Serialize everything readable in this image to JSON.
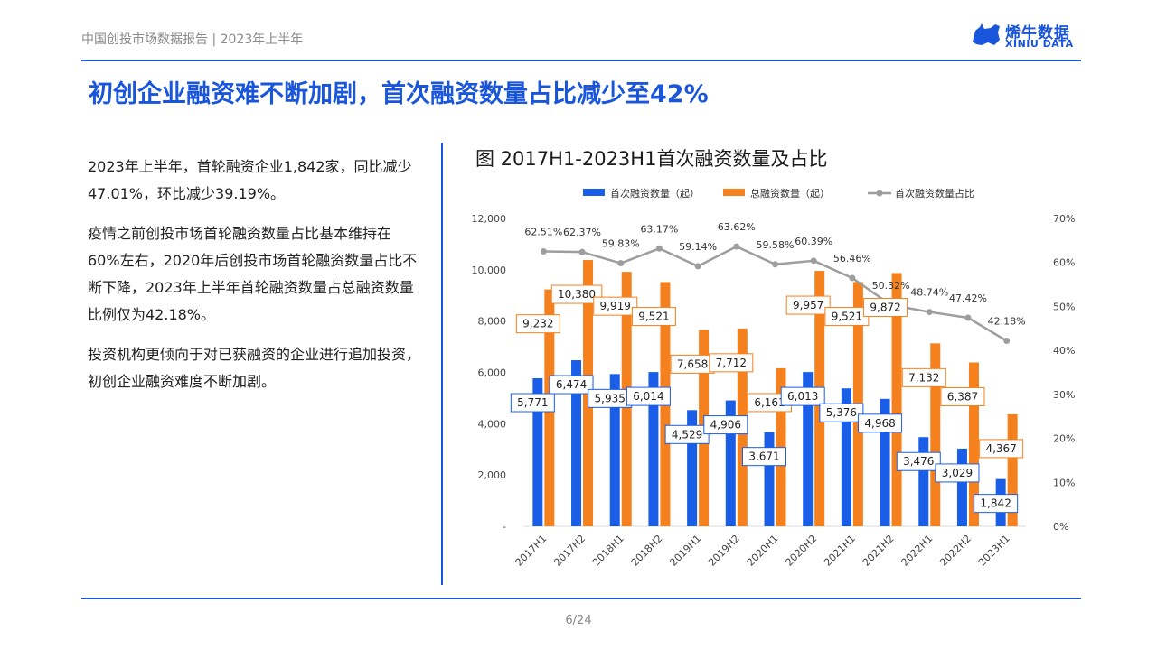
{
  "header": {
    "report_title": "中国创投市场数据报告 | 2023年上半年",
    "logo_cn": "烯牛数据",
    "logo_en": "XINIU DATA"
  },
  "page_title": "初创企业融资难不断加剧，首次融资数量占比减少至42%",
  "body_text": {
    "p1": "2023年上半年，首轮融资企业1,842家，同比减少47.01%，环比减少39.19%。",
    "p2": "疫情之前创投市场首轮融资数量占比基本维持在60%左右，2020年后创投市场首轮融资数量占比不断下降，2023年上半年首轮融资数量占总融资数量比例仅为42.18%。",
    "p3": "投资机构更倾向于对已获融资的企业进行追加投资，初创企业融资难度不断加剧。"
  },
  "chart_title": "图 2017H1-2023H1首次融资数量及占比",
  "chart_data": {
    "type": "bar",
    "categories": [
      "2017H1",
      "2017H2",
      "2018H1",
      "2018H2",
      "2019H1",
      "2019H2",
      "2020H1",
      "2020H2",
      "2021H1",
      "2021H2",
      "2022H1",
      "2022H2",
      "2023H1"
    ],
    "series": [
      {
        "name": "首次融资数量（起）",
        "type": "bar",
        "axis": "left",
        "color": "#1a5ee8",
        "values": [
          5771,
          6474,
          5935,
          6014,
          4529,
          4906,
          3671,
          6013,
          5376,
          4968,
          3476,
          3029,
          1842
        ],
        "labels": [
          "5,771",
          "6,474",
          "5,935",
          "6,014",
          "4,529",
          "4,906",
          "3,671",
          "6,013",
          "5,376",
          "4,968",
          "3,476",
          "3,029",
          "1,842"
        ]
      },
      {
        "name": "总融资数量（起）",
        "type": "bar",
        "axis": "left",
        "color": "#f5801e",
        "values": [
          9232,
          10380,
          9919,
          9521,
          7658,
          7712,
          6161,
          9957,
          9521,
          9872,
          7132,
          6387,
          4367
        ],
        "labels": [
          "9,232",
          "10,380",
          "9,919",
          "9,521",
          "7,658",
          "7,712",
          "6,161",
          "9,957",
          "9,521",
          "9,872",
          "7,132",
          "6,387",
          "4,367"
        ]
      },
      {
        "name": "首次融资数量占比",
        "type": "line",
        "axis": "right",
        "color": "#9e9e9e",
        "values": [
          62.51,
          62.37,
          59.83,
          63.17,
          59.14,
          63.62,
          59.58,
          60.39,
          56.46,
          50.32,
          48.74,
          47.42,
          42.18
        ],
        "labels": [
          "62.51%",
          "62.37%",
          "59.83%",
          "63.17%",
          "59.14%",
          "63.62%",
          "59.58%",
          "60.39%",
          "56.46%",
          "50.32%",
          "48.74%",
          "47.42%",
          "42.18%"
        ]
      }
    ],
    "left_axis": {
      "min": 0,
      "max": 12000,
      "ticks": [
        "-",
        "2,000",
        "4,000",
        "6,000",
        "8,000",
        "10,000",
        "12,000"
      ]
    },
    "right_axis": {
      "min": 0,
      "max": 70,
      "ticks": [
        "0%",
        "10%",
        "20%",
        "30%",
        "40%",
        "50%",
        "60%",
        "70%"
      ]
    },
    "legend_position": "top",
    "grid": false
  },
  "footer": {
    "page_number": "6/24"
  }
}
